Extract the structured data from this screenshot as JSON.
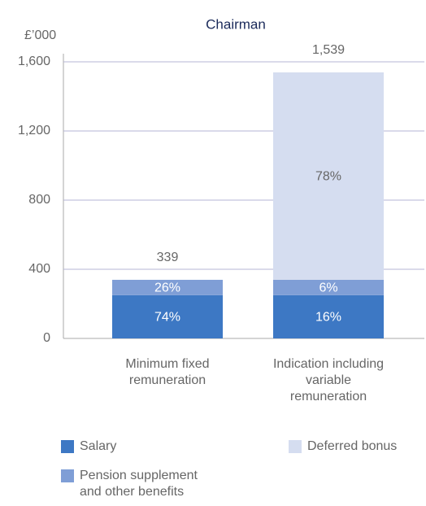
{
  "chart_data": {
    "type": "stacked_bar",
    "title": "Chairman",
    "y_label": "£’000",
    "categories": [
      "Minimum fixed remuneration",
      "Indication including variable remuneration"
    ],
    "series": [
      {
        "name": "Salary",
        "color": "#3d78c4",
        "values": [
          250,
          250
        ],
        "share_labels": [
          "74%",
          "16%"
        ]
      },
      {
        "name": "Pension supplement and other benefits",
        "color": "#7f9ed6",
        "values": [
          89,
          89
        ],
        "share_labels": [
          "26%",
          "6%"
        ]
      },
      {
        "name": "Deferred bonus",
        "color": "#d5ddf0",
        "values": [
          null,
          1200
        ],
        "share_labels": [
          null,
          "78%"
        ]
      }
    ],
    "totals": [
      339,
      1539
    ],
    "total_labels": [
      "339",
      "1,539"
    ],
    "ylim": [
      0,
      1600
    ],
    "yticks": [
      0,
      400,
      800,
      {
        "value": 1200,
        "label": "1,200"
      },
      {
        "value": 1600,
        "label": "1,600"
      }
    ],
    "grid": true
  }
}
